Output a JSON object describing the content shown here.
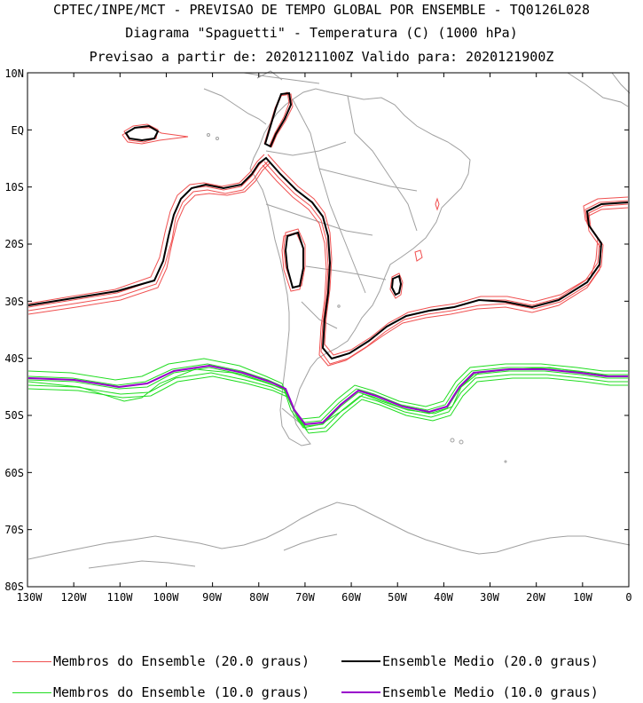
{
  "header": {
    "line1": "CPTEC/INPE/MCT - PREVISAO DE TEMPO GLOBAL POR ENSEMBLE - TQ0126L028",
    "line2": "Diagrama \"Spaguetti\" - Temperatura (C) (1000 hPa)",
    "line3": "Previsao a partir de: 2020121100Z  Valido para: 2020121900Z"
  },
  "axes": {
    "lat_labels": [
      "10N",
      "EQ",
      "10S",
      "20S",
      "30S",
      "40S",
      "50S",
      "60S",
      "70S",
      "80S"
    ],
    "lon_labels": [
      "130W",
      "120W",
      "110W",
      "100W",
      "90W",
      "80W",
      "70W",
      "60W",
      "50W",
      "40W",
      "30W",
      "20W",
      "10W",
      "0"
    ]
  },
  "legend": {
    "items": [
      {
        "label": "Membros do Ensemble (20.0 graus)",
        "color": "#f05050"
      },
      {
        "label": "Ensemble Medio (20.0 graus)",
        "color": "#000000"
      },
      {
        "label": "Membros do Ensemble (10.0 graus)",
        "color": "#20dd20"
      },
      {
        "label": "Ensemble Medio (10.0 graus)",
        "color": "#9900cc"
      }
    ]
  },
  "colors": {
    "coast": "#a0a0a0",
    "member20": "#f05050",
    "mean20": "#000000",
    "member10": "#20dd20",
    "mean10": "#9900cc"
  }
}
